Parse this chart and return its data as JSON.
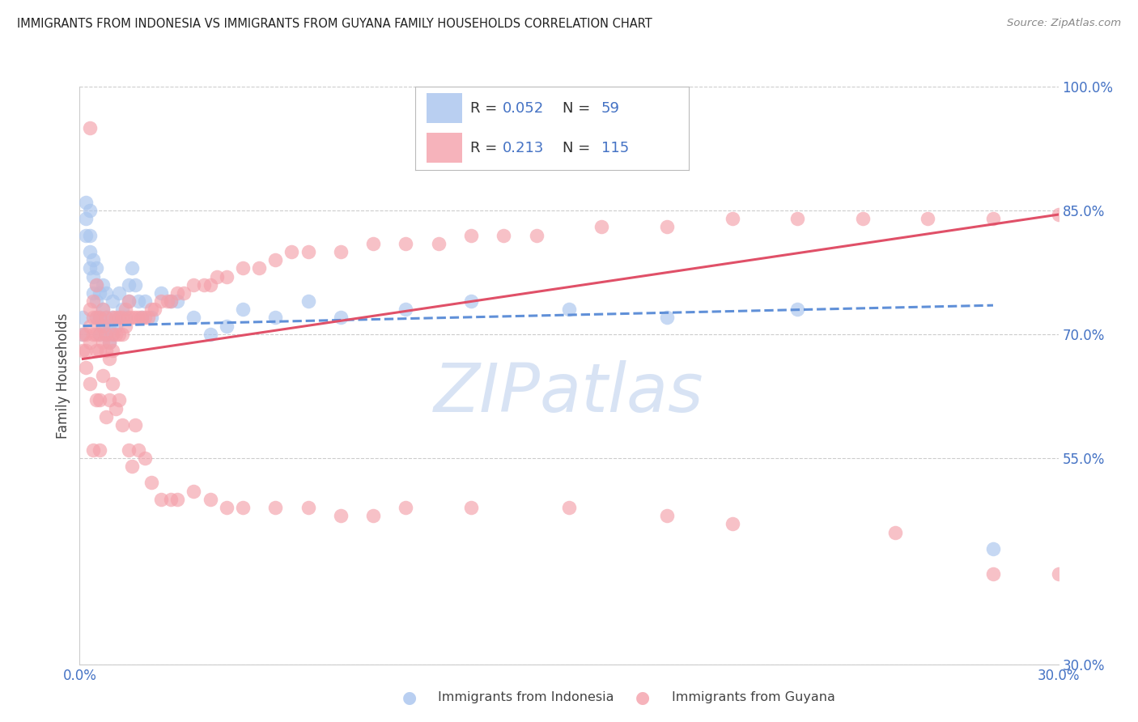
{
  "title": "IMMIGRANTS FROM INDONESIA VS IMMIGRANTS FROM GUYANA FAMILY HOUSEHOLDS CORRELATION CHART",
  "source": "Source: ZipAtlas.com",
  "ylabel": "Family Households",
  "legend_label1": "Immigrants from Indonesia",
  "legend_label2": "Immigrants from Guyana",
  "R1": 0.052,
  "N1": 59,
  "R2": 0.213,
  "N2": 115,
  "xlim": [
    0.0,
    0.3
  ],
  "ylim": [
    0.3,
    1.0
  ],
  "xtick_vals": [
    0.0,
    0.05,
    0.1,
    0.15,
    0.2,
    0.25,
    0.3
  ],
  "xtick_labels": [
    "0.0%",
    "",
    "",
    "",
    "",
    "",
    "30.0%"
  ],
  "yticks_right": [
    0.3,
    0.55,
    0.7,
    0.85,
    1.0
  ],
  "ytick_labels_right": [
    "30.0%",
    "55.0%",
    "70.0%",
    "85.0%",
    "100.0%"
  ],
  "color_indonesia": "#a8c4ee",
  "color_guyana": "#f4a0aa",
  "color_line_indonesia": "#6090d8",
  "color_line_guyana": "#e05068",
  "background_color": "#ffffff",
  "grid_color": "#cccccc",
  "title_color": "#222222",
  "axis_label_color": "#4472c4",
  "tick_color": "#4472c4",
  "watermark": "ZIPatlas",
  "watermark_color": "#c8d8f0",
  "indonesia_x": [
    0.001,
    0.001,
    0.002,
    0.002,
    0.002,
    0.003,
    0.003,
    0.003,
    0.003,
    0.004,
    0.004,
    0.004,
    0.005,
    0.005,
    0.005,
    0.005,
    0.006,
    0.006,
    0.006,
    0.007,
    0.007,
    0.007,
    0.008,
    0.008,
    0.008,
    0.009,
    0.009,
    0.01,
    0.01,
    0.01,
    0.011,
    0.012,
    0.012,
    0.013,
    0.014,
    0.015,
    0.015,
    0.016,
    0.017,
    0.018,
    0.019,
    0.02,
    0.022,
    0.025,
    0.028,
    0.03,
    0.035,
    0.04,
    0.045,
    0.05,
    0.06,
    0.07,
    0.08,
    0.1,
    0.12,
    0.15,
    0.18,
    0.22,
    0.28
  ],
  "indonesia_y": [
    0.7,
    0.72,
    0.82,
    0.84,
    0.86,
    0.78,
    0.8,
    0.82,
    0.85,
    0.75,
    0.77,
    0.79,
    0.72,
    0.74,
    0.76,
    0.78,
    0.7,
    0.72,
    0.75,
    0.71,
    0.73,
    0.76,
    0.7,
    0.72,
    0.75,
    0.69,
    0.71,
    0.7,
    0.72,
    0.74,
    0.71,
    0.72,
    0.75,
    0.73,
    0.72,
    0.74,
    0.76,
    0.78,
    0.76,
    0.74,
    0.72,
    0.74,
    0.72,
    0.75,
    0.74,
    0.74,
    0.72,
    0.7,
    0.71,
    0.73,
    0.72,
    0.74,
    0.72,
    0.73,
    0.74,
    0.73,
    0.72,
    0.73,
    0.44
  ],
  "guyana_x": [
    0.001,
    0.001,
    0.002,
    0.002,
    0.002,
    0.003,
    0.003,
    0.003,
    0.003,
    0.004,
    0.004,
    0.004,
    0.005,
    0.005,
    0.005,
    0.005,
    0.006,
    0.006,
    0.006,
    0.007,
    0.007,
    0.007,
    0.008,
    0.008,
    0.008,
    0.009,
    0.009,
    0.01,
    0.01,
    0.01,
    0.011,
    0.011,
    0.012,
    0.012,
    0.013,
    0.013,
    0.014,
    0.014,
    0.015,
    0.015,
    0.016,
    0.017,
    0.018,
    0.019,
    0.02,
    0.021,
    0.022,
    0.023,
    0.025,
    0.027,
    0.028,
    0.03,
    0.032,
    0.035,
    0.038,
    0.04,
    0.042,
    0.045,
    0.05,
    0.055,
    0.06,
    0.065,
    0.07,
    0.08,
    0.09,
    0.1,
    0.11,
    0.12,
    0.13,
    0.14,
    0.16,
    0.18,
    0.2,
    0.22,
    0.24,
    0.26,
    0.28,
    0.3,
    0.003,
    0.004,
    0.005,
    0.006,
    0.007,
    0.008,
    0.009,
    0.01,
    0.011,
    0.012,
    0.013,
    0.015,
    0.016,
    0.017,
    0.018,
    0.02,
    0.022,
    0.025,
    0.028,
    0.03,
    0.035,
    0.04,
    0.045,
    0.05,
    0.06,
    0.07,
    0.08,
    0.09,
    0.1,
    0.12,
    0.15,
    0.18,
    0.2,
    0.25,
    0.28,
    0.3,
    0.006
  ],
  "guyana_y": [
    0.68,
    0.7,
    0.66,
    0.68,
    0.7,
    0.69,
    0.71,
    0.73,
    0.95,
    0.7,
    0.72,
    0.74,
    0.68,
    0.7,
    0.72,
    0.76,
    0.68,
    0.7,
    0.72,
    0.69,
    0.71,
    0.73,
    0.68,
    0.7,
    0.72,
    0.67,
    0.69,
    0.68,
    0.7,
    0.72,
    0.7,
    0.72,
    0.7,
    0.72,
    0.7,
    0.72,
    0.71,
    0.73,
    0.72,
    0.74,
    0.72,
    0.72,
    0.72,
    0.72,
    0.72,
    0.72,
    0.73,
    0.73,
    0.74,
    0.74,
    0.74,
    0.75,
    0.75,
    0.76,
    0.76,
    0.76,
    0.77,
    0.77,
    0.78,
    0.78,
    0.79,
    0.8,
    0.8,
    0.8,
    0.81,
    0.81,
    0.81,
    0.82,
    0.82,
    0.82,
    0.83,
    0.83,
    0.84,
    0.84,
    0.84,
    0.84,
    0.84,
    0.845,
    0.64,
    0.56,
    0.62,
    0.62,
    0.65,
    0.6,
    0.62,
    0.64,
    0.61,
    0.62,
    0.59,
    0.56,
    0.54,
    0.59,
    0.56,
    0.55,
    0.52,
    0.5,
    0.5,
    0.5,
    0.51,
    0.5,
    0.49,
    0.49,
    0.49,
    0.49,
    0.48,
    0.48,
    0.49,
    0.49,
    0.49,
    0.48,
    0.47,
    0.46,
    0.41,
    0.41,
    0.56
  ],
  "trendline1_x": [
    0.001,
    0.28
  ],
  "trendline1_y": [
    0.71,
    0.735
  ],
  "trendline2_x": [
    0.001,
    0.3
  ],
  "trendline2_y": [
    0.67,
    0.845
  ]
}
